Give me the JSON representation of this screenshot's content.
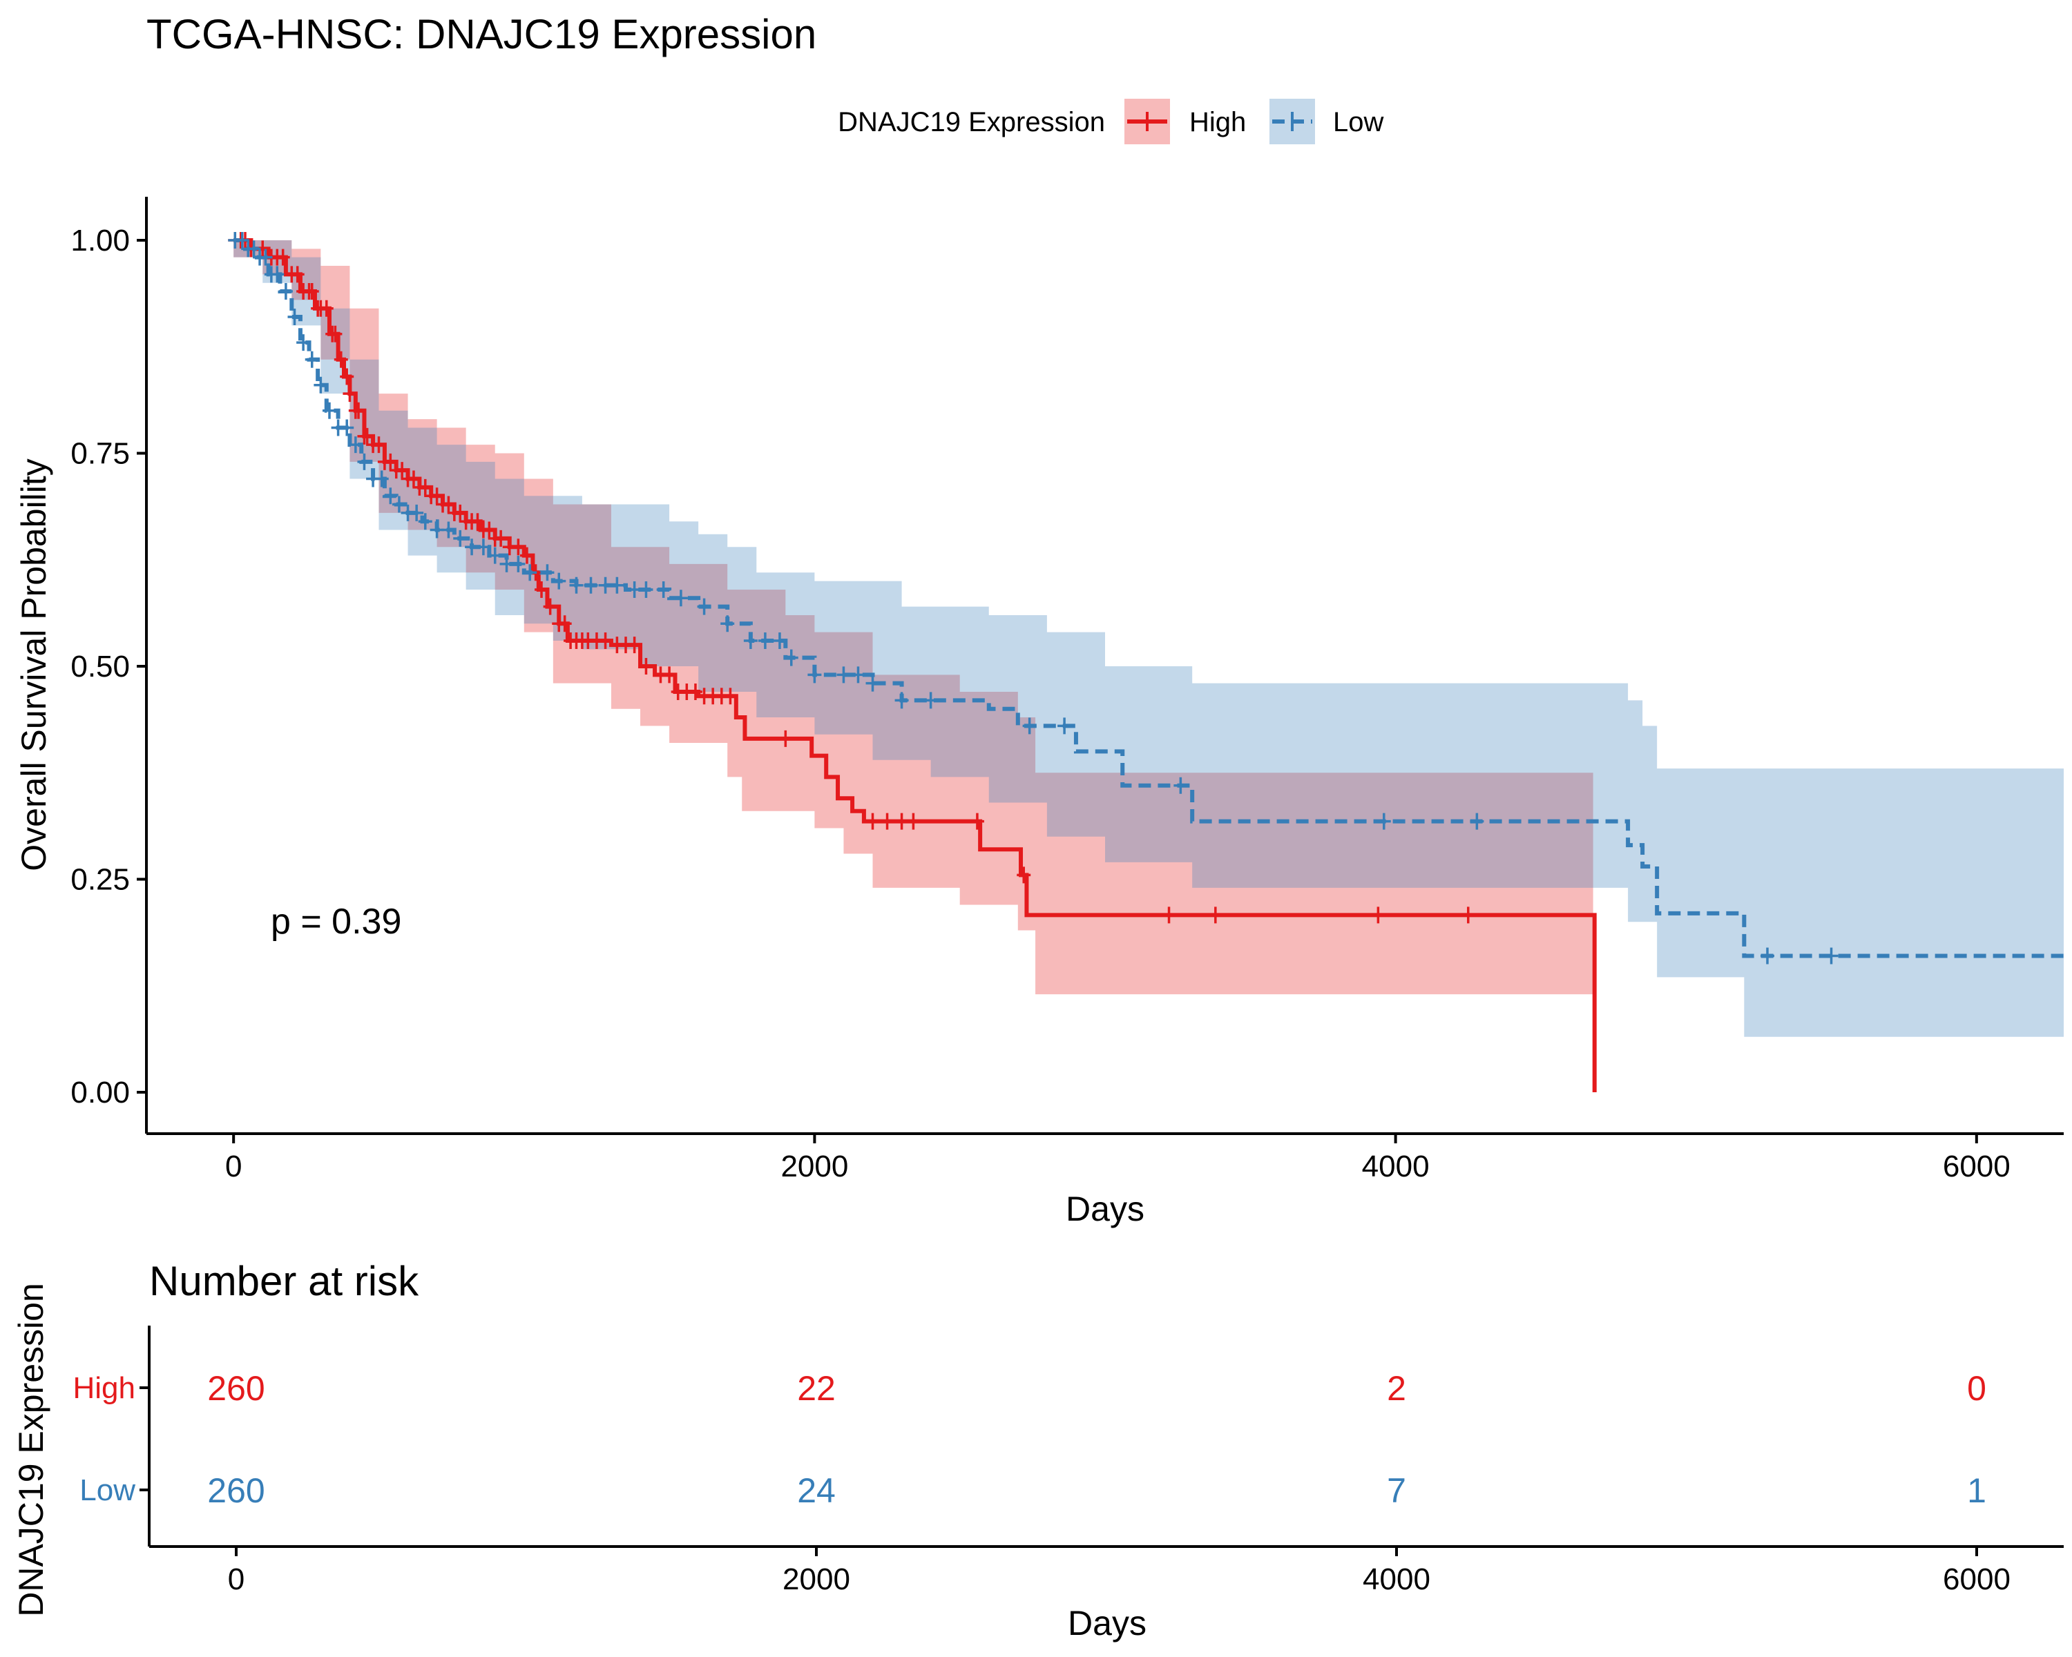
{
  "title": "TCGA-HNSC: DNAJC19 Expression",
  "legend": {
    "title": "DNAJC19 Expression",
    "items": [
      {
        "label": "High",
        "color": "#E41A1C",
        "style": "solid"
      },
      {
        "label": "Low",
        "color": "#377EB8",
        "style": "dashed"
      }
    ]
  },
  "pvalue_label": "p = 0.39",
  "risk_table": {
    "title": "Number at risk",
    "ylabel": "DNAJC19 Expression",
    "xlabel": "Days",
    "times": [
      0,
      2000,
      4000,
      6000
    ],
    "tick_labels": [
      "0",
      "2000",
      "4000",
      "6000"
    ],
    "rows": [
      {
        "group": "High",
        "color": "#E41A1C",
        "counts": [
          "260",
          "22",
          "2",
          "0"
        ]
      },
      {
        "group": "Low",
        "color": "#377EB8",
        "counts": [
          "260",
          "24",
          "7",
          "1"
        ]
      }
    ]
  },
  "chart_data": {
    "type": "line",
    "subtype": "kaplan-meier survival",
    "title": "TCGA-HNSC: DNAJC19 Expression",
    "xlabel": "Days",
    "ylabel": "Overall Survival Probability",
    "xlim": [
      -300,
      6300
    ],
    "ylim": [
      0,
      1
    ],
    "x_ticks": [
      0,
      2000,
      4000,
      6000
    ],
    "x_tick_labels": [
      "0",
      "2000",
      "4000",
      "6000"
    ],
    "y_ticks": [
      0,
      0.25,
      0.5,
      0.75,
      1.0
    ],
    "y_tick_labels": [
      "0.00",
      "0.25",
      "0.50",
      "0.75",
      "1.00"
    ],
    "grid": false,
    "legend_position": "top",
    "annotation": "p = 0.39",
    "series": [
      {
        "name": "High",
        "color": "#E41A1C",
        "dash": "solid",
        "steps": [
          [
            0,
            1.0
          ],
          [
            60,
            0.99
          ],
          [
            120,
            0.98
          ],
          [
            180,
            0.96
          ],
          [
            230,
            0.94
          ],
          [
            280,
            0.92
          ],
          [
            330,
            0.89
          ],
          [
            360,
            0.86
          ],
          [
            380,
            0.84
          ],
          [
            400,
            0.82
          ],
          [
            420,
            0.8
          ],
          [
            450,
            0.77
          ],
          [
            480,
            0.76
          ],
          [
            520,
            0.74
          ],
          [
            560,
            0.73
          ],
          [
            600,
            0.72
          ],
          [
            640,
            0.71
          ],
          [
            680,
            0.7
          ],
          [
            720,
            0.69
          ],
          [
            760,
            0.68
          ],
          [
            800,
            0.67
          ],
          [
            850,
            0.66
          ],
          [
            900,
            0.65
          ],
          [
            950,
            0.64
          ],
          [
            1000,
            0.63
          ],
          [
            1030,
            0.61
          ],
          [
            1050,
            0.59
          ],
          [
            1080,
            0.57
          ],
          [
            1120,
            0.55
          ],
          [
            1150,
            0.53
          ],
          [
            1300,
            0.525
          ],
          [
            1400,
            0.5
          ],
          [
            1450,
            0.49
          ],
          [
            1520,
            0.47
          ],
          [
            1600,
            0.465
          ],
          [
            1730,
            0.44
          ],
          [
            1760,
            0.415
          ],
          [
            1990,
            0.395
          ],
          [
            2040,
            0.37
          ],
          [
            2080,
            0.345
          ],
          [
            2130,
            0.33
          ],
          [
            2170,
            0.318
          ],
          [
            2570,
            0.285
          ],
          [
            2710,
            0.255
          ],
          [
            2730,
            0.208
          ],
          [
            4680,
            0.208
          ],
          [
            4685,
            0.0
          ]
        ],
        "censor_times": [
          5,
          25,
          40,
          60,
          100,
          130,
          150,
          170,
          200,
          220,
          240,
          260,
          270,
          290,
          300,
          320,
          340,
          350,
          370,
          390,
          400,
          420,
          430,
          450,
          460,
          480,
          500,
          520,
          540,
          560,
          580,
          600,
          620,
          640,
          660,
          680,
          700,
          720,
          740,
          760,
          780,
          800,
          820,
          840,
          860,
          880,
          900,
          920,
          950,
          980,
          1010,
          1040,
          1060,
          1090,
          1120,
          1140,
          1160,
          1180,
          1200,
          1220,
          1250,
          1280,
          1320,
          1350,
          1380,
          1420,
          1470,
          1500,
          1530,
          1560,
          1590,
          1620,
          1650,
          1680,
          1710,
          1900,
          2200,
          2250,
          2300,
          2340,
          2560,
          2720,
          3220,
          3380,
          3940,
          4250
        ],
        "ci_upper": [
          [
            0,
            1.0
          ],
          [
            100,
            1.0
          ],
          [
            200,
            0.99
          ],
          [
            300,
            0.97
          ],
          [
            400,
            0.92
          ],
          [
            500,
            0.82
          ],
          [
            600,
            0.79
          ],
          [
            700,
            0.78
          ],
          [
            800,
            0.76
          ],
          [
            900,
            0.75
          ],
          [
            1000,
            0.72
          ],
          [
            1100,
            0.69
          ],
          [
            1300,
            0.64
          ],
          [
            1500,
            0.62
          ],
          [
            1700,
            0.59
          ],
          [
            1900,
            0.56
          ],
          [
            2000,
            0.54
          ],
          [
            2200,
            0.49
          ],
          [
            2500,
            0.47
          ],
          [
            2700,
            0.44
          ],
          [
            2760,
            0.375
          ],
          [
            4680,
            0.375
          ]
        ],
        "ci_lower": [
          [
            0,
            0.98
          ],
          [
            100,
            0.96
          ],
          [
            200,
            0.93
          ],
          [
            300,
            0.86
          ],
          [
            400,
            0.74
          ],
          [
            500,
            0.68
          ],
          [
            600,
            0.66
          ],
          [
            700,
            0.64
          ],
          [
            800,
            0.61
          ],
          [
            900,
            0.59
          ],
          [
            1000,
            0.54
          ],
          [
            1100,
            0.48
          ],
          [
            1300,
            0.45
          ],
          [
            1400,
            0.43
          ],
          [
            1500,
            0.41
          ],
          [
            1700,
            0.37
          ],
          [
            1750,
            0.33
          ],
          [
            2000,
            0.31
          ],
          [
            2100,
            0.28
          ],
          [
            2200,
            0.24
          ],
          [
            2500,
            0.22
          ],
          [
            2700,
            0.19
          ],
          [
            2760,
            0.115
          ],
          [
            4680,
            0.115
          ]
        ]
      },
      {
        "name": "Low",
        "color": "#377EB8",
        "dash": "dashed",
        "steps": [
          [
            0,
            1.0
          ],
          [
            40,
            0.99
          ],
          [
            80,
            0.98
          ],
          [
            120,
            0.96
          ],
          [
            160,
            0.94
          ],
          [
            200,
            0.91
          ],
          [
            230,
            0.88
          ],
          [
            260,
            0.86
          ],
          [
            290,
            0.83
          ],
          [
            320,
            0.8
          ],
          [
            360,
            0.78
          ],
          [
            400,
            0.76
          ],
          [
            440,
            0.74
          ],
          [
            480,
            0.72
          ],
          [
            520,
            0.7
          ],
          [
            560,
            0.69
          ],
          [
            600,
            0.68
          ],
          [
            650,
            0.67
          ],
          [
            700,
            0.66
          ],
          [
            760,
            0.65
          ],
          [
            820,
            0.64
          ],
          [
            880,
            0.63
          ],
          [
            940,
            0.62
          ],
          [
            1000,
            0.61
          ],
          [
            1100,
            0.6
          ],
          [
            1180,
            0.595
          ],
          [
            1350,
            0.59
          ],
          [
            1500,
            0.58
          ],
          [
            1600,
            0.57
          ],
          [
            1700,
            0.55
          ],
          [
            1780,
            0.53
          ],
          [
            1900,
            0.51
          ],
          [
            2000,
            0.49
          ],
          [
            2200,
            0.48
          ],
          [
            2300,
            0.46
          ],
          [
            2600,
            0.45
          ],
          [
            2700,
            0.43
          ],
          [
            2900,
            0.4
          ],
          [
            3060,
            0.36
          ],
          [
            3300,
            0.318
          ],
          [
            4800,
            0.29
          ],
          [
            4850,
            0.265
          ],
          [
            4900,
            0.21
          ],
          [
            5200,
            0.16
          ],
          [
            6300,
            0.16
          ]
        ],
        "censor_times": [
          5,
          30,
          50,
          70,
          90,
          110,
          130,
          150,
          180,
          210,
          240,
          270,
          300,
          330,
          360,
          390,
          420,
          450,
          480,
          510,
          540,
          570,
          600,
          630,
          660,
          700,
          740,
          780,
          820,
          860,
          900,
          940,
          980,
          1020,
          1080,
          1120,
          1180,
          1230,
          1280,
          1320,
          1380,
          1420,
          1480,
          1540,
          1620,
          1700,
          1780,
          1830,
          1880,
          1920,
          2000,
          2100,
          2150,
          2200,
          2300,
          2400,
          2740,
          2860,
          3260,
          3960,
          4280,
          5280,
          5500
        ],
        "ci_upper": [
          [
            0,
            1.0
          ],
          [
            100,
            1.0
          ],
          [
            200,
            0.98
          ],
          [
            300,
            0.92
          ],
          [
            400,
            0.86
          ],
          [
            500,
            0.8
          ],
          [
            600,
            0.78
          ],
          [
            700,
            0.76
          ],
          [
            800,
            0.74
          ],
          [
            900,
            0.72
          ],
          [
            1000,
            0.7
          ],
          [
            1200,
            0.69
          ],
          [
            1500,
            0.67
          ],
          [
            1600,
            0.655
          ],
          [
            1700,
            0.64
          ],
          [
            1800,
            0.61
          ],
          [
            2000,
            0.6
          ],
          [
            2300,
            0.57
          ],
          [
            2600,
            0.56
          ],
          [
            2800,
            0.54
          ],
          [
            3000,
            0.5
          ],
          [
            3300,
            0.48
          ],
          [
            4800,
            0.46
          ],
          [
            4850,
            0.43
          ],
          [
            4900,
            0.38
          ],
          [
            5200,
            0.38
          ],
          [
            6300,
            0.38
          ]
        ],
        "ci_lower": [
          [
            0,
            0.98
          ],
          [
            100,
            0.95
          ],
          [
            200,
            0.9
          ],
          [
            300,
            0.82
          ],
          [
            400,
            0.72
          ],
          [
            500,
            0.66
          ],
          [
            600,
            0.63
          ],
          [
            700,
            0.61
          ],
          [
            800,
            0.59
          ],
          [
            900,
            0.56
          ],
          [
            1000,
            0.55
          ],
          [
            1100,
            0.53
          ],
          [
            1200,
            0.52
          ],
          [
            1400,
            0.5
          ],
          [
            1600,
            0.47
          ],
          [
            1800,
            0.44
          ],
          [
            2000,
            0.42
          ],
          [
            2200,
            0.39
          ],
          [
            2400,
            0.37
          ],
          [
            2600,
            0.34
          ],
          [
            2800,
            0.3
          ],
          [
            3000,
            0.27
          ],
          [
            3300,
            0.24
          ],
          [
            4800,
            0.2
          ],
          [
            4900,
            0.135
          ],
          [
            5200,
            0.065
          ],
          [
            6300,
            0.065
          ]
        ]
      }
    ]
  }
}
